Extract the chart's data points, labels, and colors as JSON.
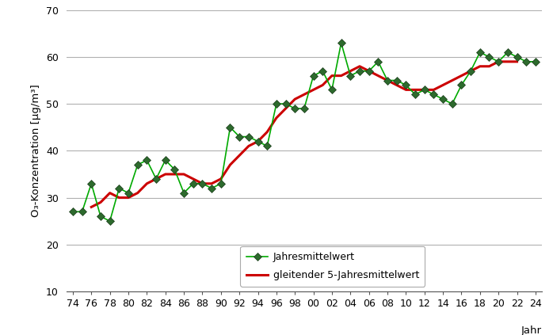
{
  "years": [
    1974,
    1975,
    1976,
    1977,
    1978,
    1979,
    1980,
    1981,
    1982,
    1983,
    1984,
    1985,
    1986,
    1987,
    1988,
    1989,
    1990,
    1991,
    1992,
    1993,
    1994,
    1995,
    1996,
    1997,
    1998,
    1999,
    2000,
    2001,
    2002,
    2003,
    2004,
    2005,
    2006,
    2007,
    2008,
    2009,
    2010,
    2011,
    2012,
    2013,
    2014,
    2015,
    2016,
    2017,
    2018,
    2019,
    2020,
    2021,
    2022,
    2023,
    2024
  ],
  "values": [
    27,
    27,
    33,
    26,
    25,
    32,
    31,
    37,
    38,
    34,
    38,
    36,
    31,
    33,
    33,
    32,
    33,
    45,
    43,
    43,
    42,
    41,
    50,
    50,
    49,
    49,
    56,
    57,
    53,
    63,
    56,
    57,
    57,
    59,
    55,
    55,
    54,
    52,
    53,
    52,
    51,
    50,
    54,
    57,
    61,
    60,
    59,
    61,
    60,
    59,
    59
  ],
  "moving_avg_years": [
    1976,
    1977,
    1978,
    1979,
    1980,
    1981,
    1982,
    1983,
    1984,
    1985,
    1986,
    1987,
    1988,
    1989,
    1990,
    1991,
    1992,
    1993,
    1994,
    1995,
    1996,
    1997,
    1998,
    1999,
    2000,
    2001,
    2002,
    2003,
    2004,
    2005,
    2006,
    2007,
    2008,
    2009,
    2010,
    2011,
    2012,
    2013,
    2014,
    2015,
    2016,
    2017,
    2018,
    2019,
    2020,
    2021,
    2022
  ],
  "moving_avg_values": [
    28,
    29,
    31,
    30,
    30,
    31,
    33,
    34,
    35,
    35,
    35,
    34,
    33,
    33,
    34,
    37,
    39,
    41,
    42,
    44,
    47,
    49,
    51,
    52,
    53,
    54,
    56,
    56,
    57,
    58,
    57,
    56,
    55,
    54,
    53,
    53,
    53,
    53,
    54,
    55,
    56,
    57,
    58,
    58,
    59,
    59,
    59
  ],
  "xlabel": "Jahr",
  "ylabel": "O₃-Konzentration [µg/m³]",
  "ylim": [
    10,
    70
  ],
  "yticks": [
    10,
    20,
    30,
    40,
    50,
    60,
    70
  ],
  "xtick_labels": [
    "74",
    "76",
    "78",
    "80",
    "82",
    "84",
    "86",
    "88",
    "90",
    "92",
    "94",
    "96",
    "98",
    "00",
    "02",
    "04",
    "06",
    "08",
    "10",
    "12",
    "14",
    "16",
    "18",
    "20",
    "22",
    "24"
  ],
  "line_color": "#00aa00",
  "marker_color": "#2d6a2d",
  "avg_line_color": "#cc0000",
  "legend_label_annual": "Jahresmittelwert",
  "legend_label_avg": "gleitender 5-Jahresmittelwert",
  "background_color": "#ffffff",
  "grid_color": "#b0b0b0"
}
